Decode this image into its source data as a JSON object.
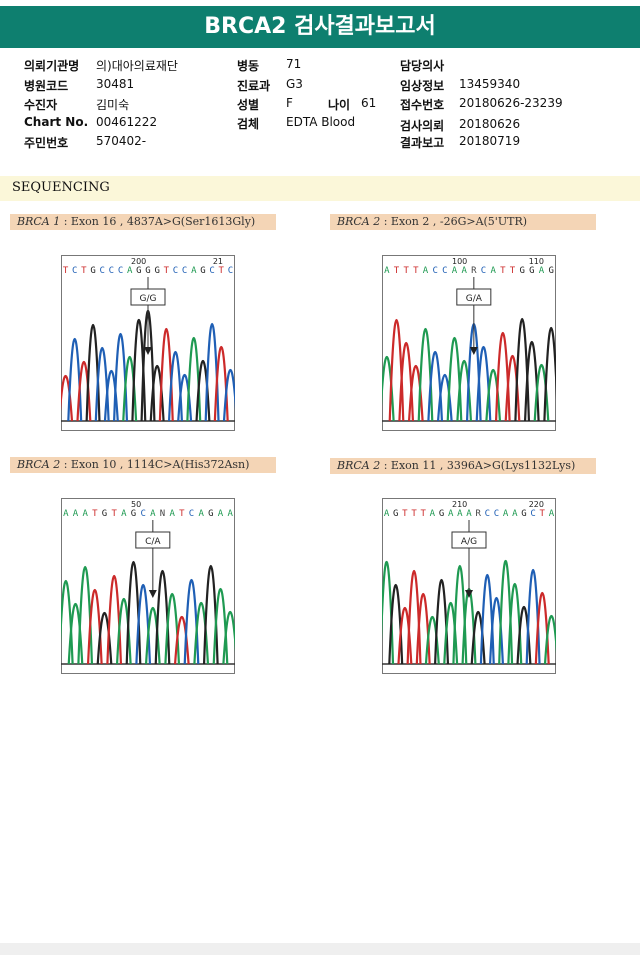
{
  "report": {
    "title": "BRCA2 검사결과보고서"
  },
  "info": {
    "col1": [
      {
        "label": "의뢰기관명",
        "value": "의)대아의료재단"
      },
      {
        "label": "병원코드",
        "value": "30481"
      },
      {
        "label": "수진자",
        "value": "김미숙"
      },
      {
        "label": "Chart No.",
        "value": "00461222"
      },
      {
        "label": "주민번호",
        "value": "570402-"
      }
    ],
    "col2": [
      {
        "label": "병동",
        "value": "71"
      },
      {
        "label": "진료과",
        "value": "G3"
      },
      {
        "label": "성별",
        "value": "F"
      },
      {
        "label": "검체",
        "value": "EDTA Blood"
      }
    ],
    "age": {
      "label": "나이",
      "value": "61"
    },
    "col3": [
      {
        "label": "담당의사",
        "value": ""
      },
      {
        "label": "임상정보",
        "value": "13459340"
      },
      {
        "label": "접수번호",
        "value": "20180626-23239"
      },
      {
        "label": "검사의뢰",
        "value": "20180626"
      },
      {
        "label": "결과보고",
        "value": "20180719"
      }
    ]
  },
  "sequencing": {
    "title": "SEQUENCING",
    "panels": [
      {
        "gene": "BRCA 1",
        "desc": " : Exon 16 , 4837A>G(Ser1613Gly)",
        "sequence": "TCTGCCCAGGGTCCAGCTC",
        "pos_left": "200",
        "pos_right": "21",
        "call": "G/G"
      },
      {
        "gene": "BRCA 2",
        "desc": " : Exon 2 , -26G>A(5'UTR)",
        "sequence": "ATTTACCAARCATTGGAG",
        "pos_left": "100",
        "pos_right": "110",
        "call": "G/A"
      },
      {
        "gene": "BRCA 2",
        "desc": " : Exon 10 , 1114C>A(His372Asn)",
        "sequence": "AAATGTAGCANATCAGAA",
        "pos_left": "50",
        "pos_right": "",
        "call": "C/A"
      },
      {
        "gene": "BRCA 2",
        "desc": " : Exon 11 , 3396A>G(Lys1132Lys)",
        "sequence": "AGTTTAGAAARCCAAGCTA",
        "pos_left": "210",
        "pos_right": "220",
        "call": "A/G"
      }
    ]
  },
  "colors": {
    "header": "#0e7f6f",
    "A": "#1f9a52",
    "C": "#1f5fb5",
    "G": "#222222",
    "T": "#cc2a2a"
  }
}
